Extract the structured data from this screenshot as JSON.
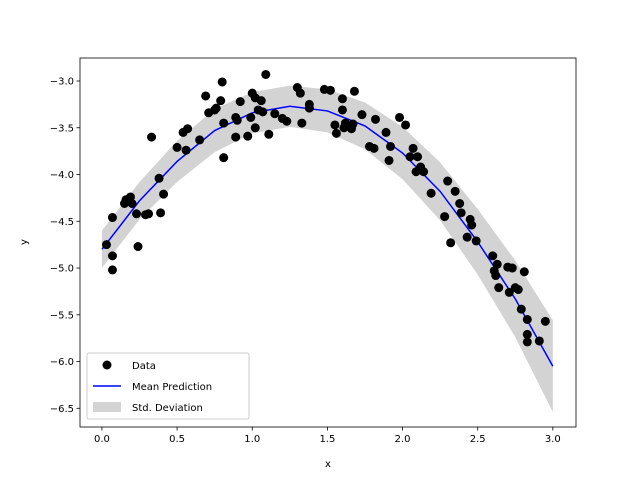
{
  "chart_data": {
    "type": "scatter",
    "xlabel": "x",
    "ylabel": "y",
    "xlim": [
      -0.146,
      3.154
    ],
    "ylim": [
      -6.7,
      -2.754
    ],
    "xticks": [
      0.0,
      0.5,
      1.0,
      1.5,
      2.0,
      2.5,
      3.0
    ],
    "xtick_labels": [
      "0.0",
      "0.5",
      "1.0",
      "1.5",
      "2.0",
      "2.5",
      "3.0"
    ],
    "yticks": [
      -3.0,
      -3.5,
      -4.0,
      -4.5,
      -5.0,
      -5.5,
      -6.0,
      -6.5
    ],
    "ytick_labels": [
      "−3.0",
      "−3.5",
      "−4.0",
      "−4.5",
      "−5.0",
      "−5.5",
      "−6.0",
      "−6.5"
    ],
    "grid": false,
    "legend": {
      "placement": "lower-left",
      "entries": [
        "Data",
        "Mean Prediction",
        "Std. Deviation"
      ]
    },
    "colors": {
      "data": "#000000",
      "mean": "#0000ff",
      "std": "#d3d3d3"
    },
    "series": [
      {
        "name": "Data",
        "type": "scatter",
        "points": [
          [
            0.03,
            -4.75
          ],
          [
            0.07,
            -4.46
          ],
          [
            0.07,
            -4.87
          ],
          [
            0.07,
            -5.02
          ],
          [
            0.15,
            -4.31
          ],
          [
            0.16,
            -4.27
          ],
          [
            0.19,
            -4.24
          ],
          [
            0.2,
            -4.31
          ],
          [
            0.23,
            -4.42
          ],
          [
            0.24,
            -4.77
          ],
          [
            0.29,
            -4.43
          ],
          [
            0.31,
            -4.42
          ],
          [
            0.33,
            -3.6
          ],
          [
            0.38,
            -4.04
          ],
          [
            0.39,
            -4.41
          ],
          [
            0.41,
            -4.21
          ],
          [
            0.5,
            -3.71
          ],
          [
            0.54,
            -3.55
          ],
          [
            0.56,
            -3.74
          ],
          [
            0.57,
            -3.51
          ],
          [
            0.65,
            -3.63
          ],
          [
            0.69,
            -3.16
          ],
          [
            0.71,
            -3.34
          ],
          [
            0.75,
            -3.31
          ],
          [
            0.76,
            -3.29
          ],
          [
            0.79,
            -3.21
          ],
          [
            0.8,
            -3.01
          ],
          [
            0.81,
            -3.45
          ],
          [
            0.81,
            -3.82
          ],
          [
            0.89,
            -3.39
          ],
          [
            0.89,
            -3.6
          ],
          [
            0.9,
            -3.42
          ],
          [
            0.92,
            -3.22
          ],
          [
            0.97,
            -3.59
          ],
          [
            0.99,
            -3.39
          ],
          [
            1.0,
            -3.13
          ],
          [
            1.02,
            -3.18
          ],
          [
            1.02,
            -3.5
          ],
          [
            1.04,
            -3.31
          ],
          [
            1.06,
            -3.21
          ],
          [
            1.07,
            -3.33
          ],
          [
            1.09,
            -2.93
          ],
          [
            1.11,
            -3.57
          ],
          [
            1.15,
            -3.35
          ],
          [
            1.2,
            -3.4
          ],
          [
            1.23,
            -3.43
          ],
          [
            1.3,
            -3.07
          ],
          [
            1.32,
            -3.13
          ],
          [
            1.33,
            -3.45
          ],
          [
            1.38,
            -3.29
          ],
          [
            1.38,
            -3.25
          ],
          [
            1.48,
            -3.09
          ],
          [
            1.52,
            -3.1
          ],
          [
            1.55,
            -3.47
          ],
          [
            1.56,
            -3.56
          ],
          [
            1.6,
            -3.19
          ],
          [
            1.6,
            -3.31
          ],
          [
            1.61,
            -3.5
          ],
          [
            1.62,
            -3.45
          ],
          [
            1.66,
            -3.51
          ],
          [
            1.67,
            -3.46
          ],
          [
            1.68,
            -3.11
          ],
          [
            1.73,
            -3.36
          ],
          [
            1.78,
            -3.7
          ],
          [
            1.81,
            -3.72
          ],
          [
            1.82,
            -3.41
          ],
          [
            1.89,
            -3.55
          ],
          [
            1.91,
            -3.85
          ],
          [
            1.92,
            -3.7
          ],
          [
            1.98,
            -3.39
          ],
          [
            2.02,
            -3.47
          ],
          [
            2.05,
            -3.81
          ],
          [
            2.07,
            -3.72
          ],
          [
            2.09,
            -3.97
          ],
          [
            2.1,
            -3.81
          ],
          [
            2.12,
            -3.92
          ],
          [
            2.14,
            -3.97
          ],
          [
            2.19,
            -4.2
          ],
          [
            2.28,
            -4.45
          ],
          [
            2.3,
            -4.07
          ],
          [
            2.32,
            -4.73
          ],
          [
            2.35,
            -4.18
          ],
          [
            2.38,
            -4.31
          ],
          [
            2.39,
            -4.41
          ],
          [
            2.43,
            -4.67
          ],
          [
            2.45,
            -4.48
          ],
          [
            2.46,
            -4.54
          ],
          [
            2.49,
            -4.71
          ],
          [
            2.6,
            -4.87
          ],
          [
            2.61,
            -5.03
          ],
          [
            2.62,
            -5.08
          ],
          [
            2.63,
            -4.96
          ],
          [
            2.64,
            -5.21
          ],
          [
            2.7,
            -4.99
          ],
          [
            2.71,
            -5.26
          ],
          [
            2.73,
            -5.0
          ],
          [
            2.75,
            -5.21
          ],
          [
            2.77,
            -5.23
          ],
          [
            2.79,
            -5.44
          ],
          [
            2.81,
            -5.04
          ],
          [
            2.83,
            -5.55
          ],
          [
            2.83,
            -5.71
          ],
          [
            2.83,
            -5.79
          ],
          [
            2.91,
            -5.78
          ],
          [
            2.95,
            -5.57
          ]
        ]
      },
      {
        "name": "Mean Prediction",
        "type": "line",
        "x": [
          0.0,
          0.25,
          0.5,
          0.75,
          1.0,
          1.25,
          1.5,
          1.75,
          2.0,
          2.25,
          2.5,
          2.75,
          3.0
        ],
        "y": [
          -4.8,
          -4.28,
          -3.86,
          -3.53,
          -3.34,
          -3.27,
          -3.32,
          -3.48,
          -3.77,
          -4.18,
          -4.72,
          -5.33,
          -6.05
        ]
      },
      {
        "name": "Std. Deviation",
        "type": "band",
        "x": [
          0.0,
          0.25,
          0.5,
          0.75,
          1.0,
          1.25,
          1.5,
          1.75,
          2.0,
          2.25,
          2.5,
          2.75,
          3.0
        ],
        "lower": [
          -5.0,
          -4.48,
          -4.08,
          -3.76,
          -3.56,
          -3.49,
          -3.55,
          -3.73,
          -4.05,
          -4.49,
          -5.07,
          -5.74,
          -6.54
        ],
        "upper": [
          -4.6,
          -4.08,
          -3.64,
          -3.3,
          -3.12,
          -3.05,
          -3.09,
          -3.23,
          -3.49,
          -3.87,
          -4.37,
          -4.92,
          -5.56
        ]
      }
    ]
  }
}
